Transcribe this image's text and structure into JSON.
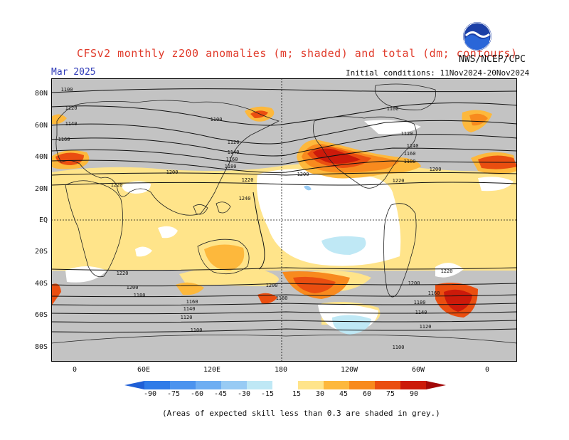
{
  "title": "CFSv2 monthly z200 anomalies (m; shaded) and total (dm; contours)",
  "valid_month": "Mar 2025",
  "agency": "NWS/NCEP/CPC",
  "initial_conditions": "Initial conditions: 11Nov2024-20Nov2024",
  "logo_text": "NOAA",
  "lat_labels": [
    "80N",
    "60N",
    "40N",
    "20N",
    "EQ",
    "20S",
    "40S",
    "60S",
    "80S"
  ],
  "lon_labels": [
    "0",
    "60E",
    "120E",
    "180",
    "120W",
    "60W",
    "0"
  ],
  "contour_labels": [
    {
      "text": "1100"
    },
    {
      "text": "1120"
    },
    {
      "text": "1140"
    },
    {
      "text": "1160"
    },
    {
      "text": "1100"
    },
    {
      "text": "1120"
    },
    {
      "text": "1140"
    },
    {
      "text": "1160"
    },
    {
      "text": "1180"
    },
    {
      "text": "1200"
    },
    {
      "text": "1220"
    },
    {
      "text": "1240"
    },
    {
      "text": "1200"
    },
    {
      "text": "1100"
    },
    {
      "text": "1120"
    },
    {
      "text": "1140"
    },
    {
      "text": "1160"
    },
    {
      "text": "1180"
    },
    {
      "text": "1200"
    },
    {
      "text": "1220"
    },
    {
      "text": "1220"
    },
    {
      "text": "1200"
    },
    {
      "text": "1180"
    },
    {
      "text": "1160"
    },
    {
      "text": "1140"
    },
    {
      "text": "1120"
    },
    {
      "text": "1100"
    },
    {
      "text": "1220"
    },
    {
      "text": "1200"
    },
    {
      "text": "1180"
    },
    {
      "text": "1160"
    },
    {
      "text": "1220"
    },
    {
      "text": "1200"
    },
    {
      "text": "1180"
    },
    {
      "text": "1140"
    },
    {
      "text": "1120"
    },
    {
      "text": "1100"
    }
  ],
  "colorbar": {
    "labels": [
      "-90",
      "-75",
      "-60",
      "-45",
      "-30",
      "-15",
      "15",
      "30",
      "45",
      "60",
      "75",
      "90"
    ],
    "colors": [
      "#1f5fd6",
      "#2f7be8",
      "#4b93ee",
      "#6eaef2",
      "#98cbf4",
      "#bfe8f5",
      "#ffffff",
      "#ffe48a",
      "#fdb83c",
      "#f88a1e",
      "#ea4e10",
      "#cc1a0a",
      "#a20808"
    ]
  },
  "skill_note": "(Areas of expected skill less than 0.3 are shaded in grey.)",
  "colors": {
    "grey_low_skill": "#c3c3c3",
    "ocean": "#ffffff",
    "title_text": "#e03a2a",
    "date_text": "#2e3ab8"
  }
}
